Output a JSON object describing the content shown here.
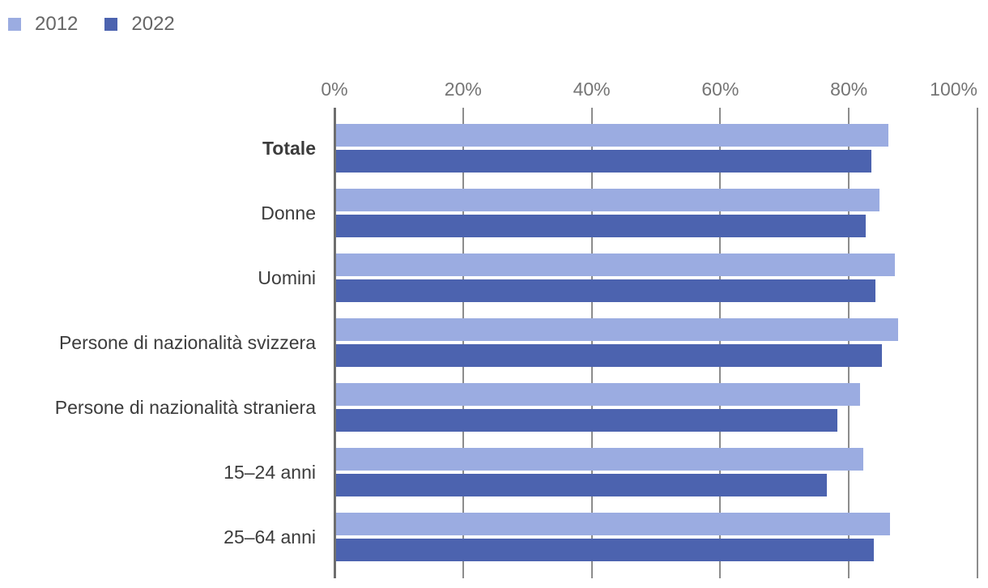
{
  "legend": {
    "items": [
      {
        "label": "2012",
        "color": "#9BACE1"
      },
      {
        "label": "2022",
        "color": "#4C63AF"
      }
    ]
  },
  "chart_data": {
    "type": "bar",
    "orientation": "horizontal",
    "title": "",
    "categories": [
      "Totale",
      "Donne",
      "Uomini",
      "Persone di nazionalità svizzera",
      "Persone di nazionalità straniera",
      "15–24 anni",
      "25–64 anni"
    ],
    "bold_category": "Totale",
    "series": [
      {
        "name": "2012",
        "color": "#9BACE1",
        "values": [
          86.0,
          84.6,
          87.0,
          87.5,
          81.5,
          82.0,
          86.2
        ]
      },
      {
        "name": "2022",
        "color": "#4C63AF",
        "values": [
          83.3,
          82.4,
          84.0,
          85.0,
          78.0,
          76.4,
          83.7
        ]
      }
    ],
    "x_ticks": [
      "0%",
      "20%",
      "40%",
      "60%",
      "80%",
      "100%"
    ],
    "xlim": [
      0,
      100
    ],
    "grid": true,
    "legend_position": "top-left"
  },
  "colors": {
    "background": "#FFFFFF",
    "grid_line": "#8C8C8C",
    "axis_line": "#6E6E6E",
    "tick_label_text": "#757575",
    "category_label_text": "#3C3C3C",
    "legend_text": "#666666"
  }
}
